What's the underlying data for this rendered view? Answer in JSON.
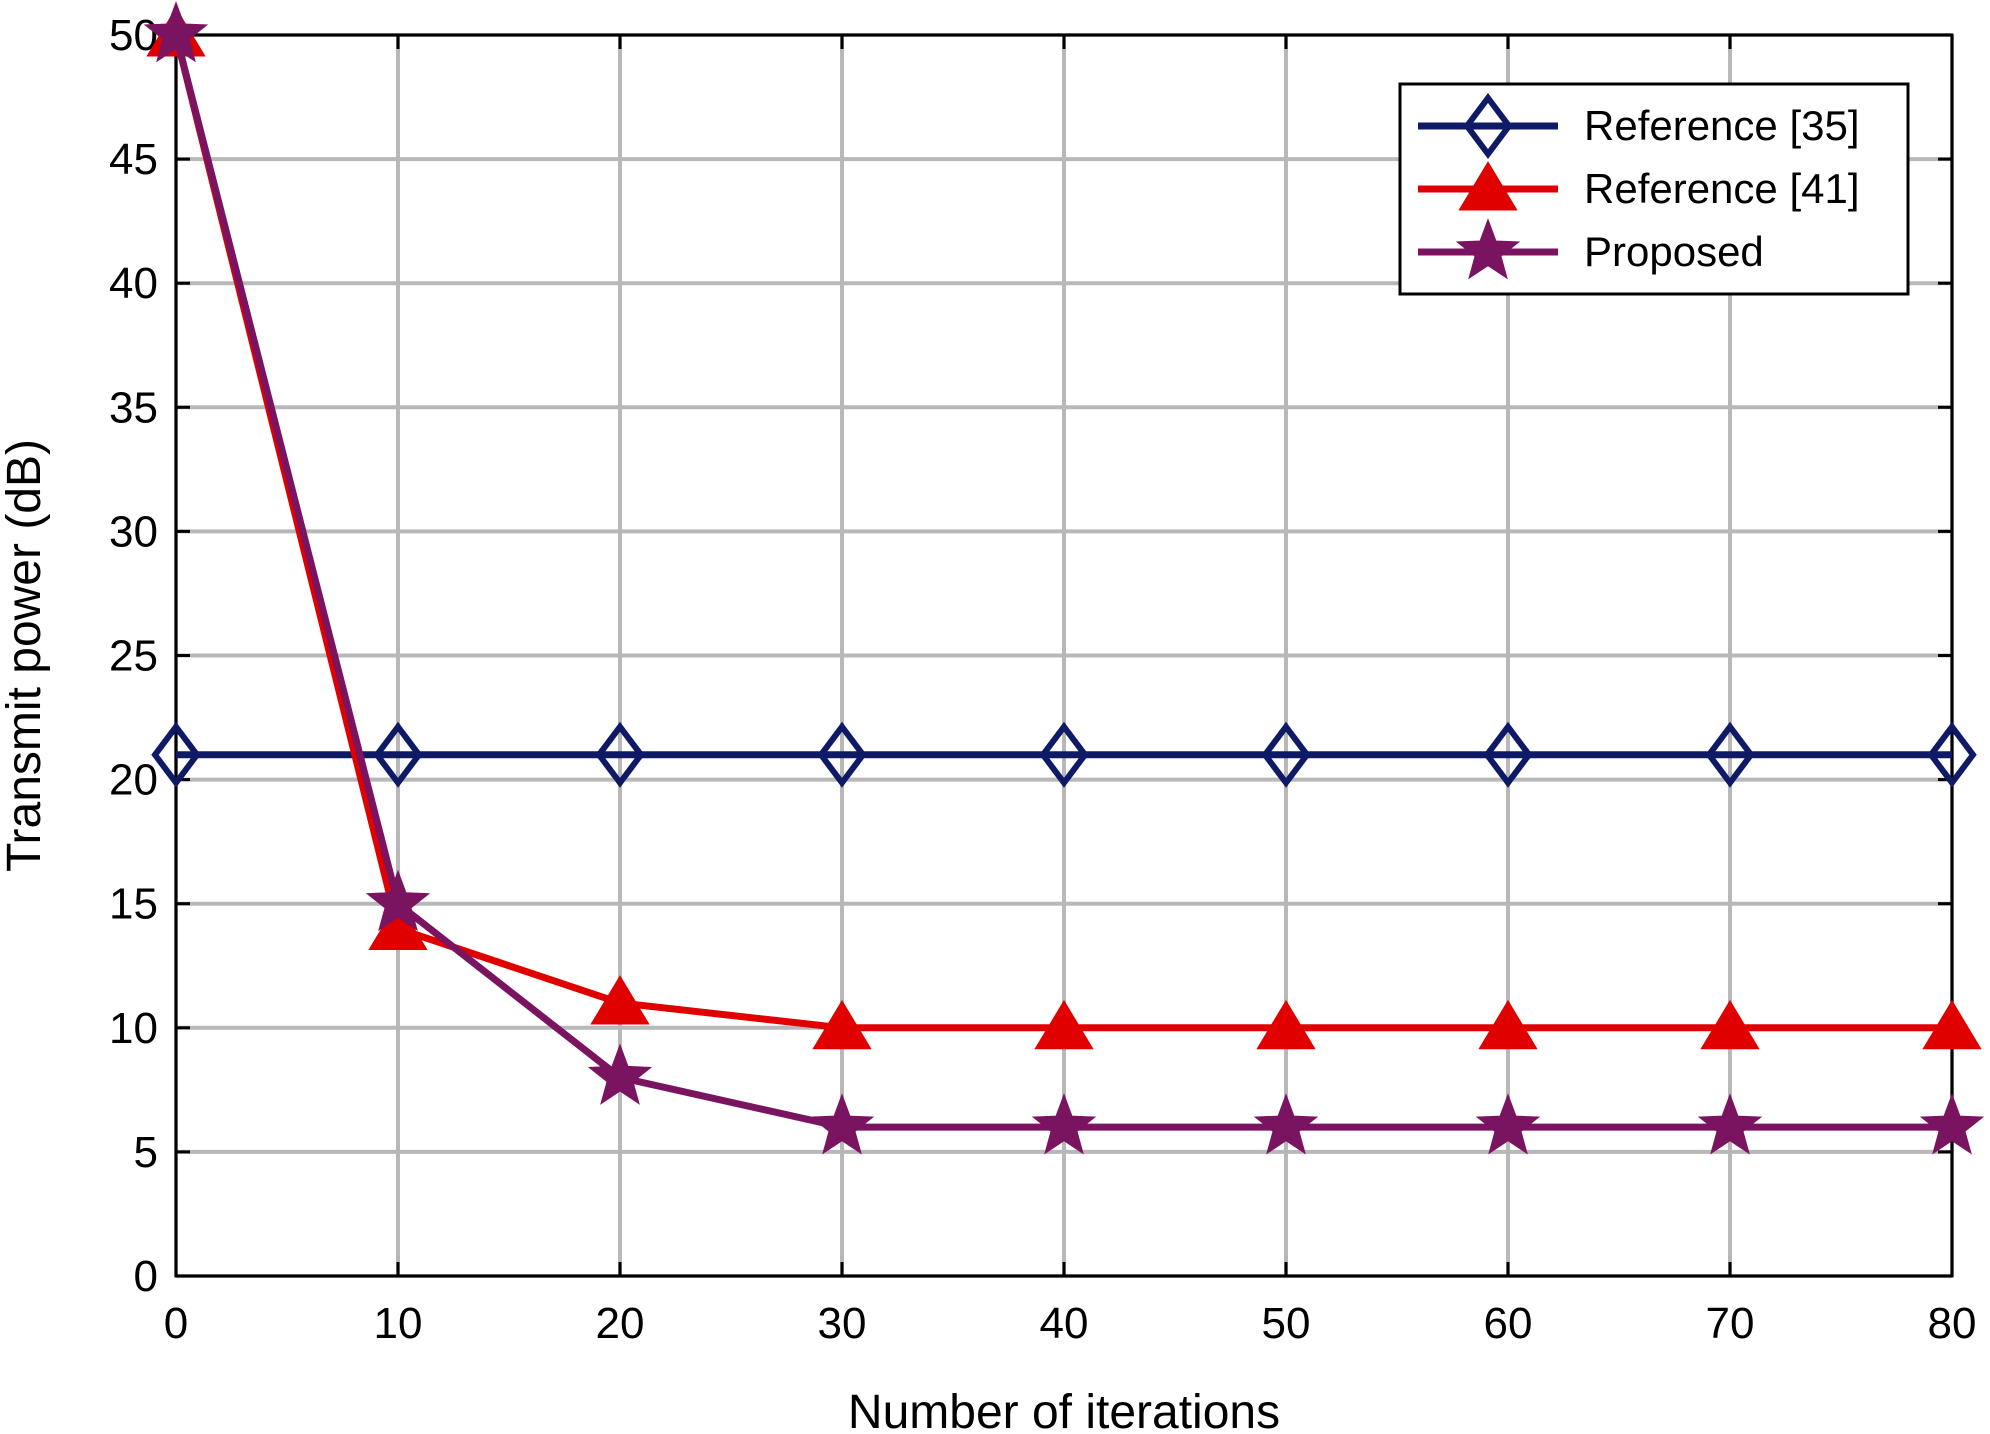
{
  "chart_data": {
    "type": "line",
    "title": "",
    "xlabel": "Number of iterations",
    "ylabel": "Transmit power (dB)",
    "xlim": [
      0,
      80
    ],
    "ylim": [
      0,
      50
    ],
    "xticks": [
      0,
      10,
      20,
      30,
      40,
      50,
      60,
      70,
      80
    ],
    "yticks": [
      0,
      5,
      10,
      15,
      20,
      25,
      30,
      35,
      40,
      45,
      50
    ],
    "grid": true,
    "legend_position": "top-right",
    "x": [
      0,
      10,
      20,
      30,
      40,
      50,
      60,
      70,
      80
    ],
    "series": [
      {
        "name": "Reference [35]",
        "marker": "diamond",
        "color": "#0f1a66",
        "values": [
          21,
          21,
          21,
          21,
          21,
          21,
          21,
          21,
          21
        ]
      },
      {
        "name": "Reference [41]",
        "marker": "triangle",
        "color": "#e00000",
        "values": [
          50,
          14,
          11,
          10,
          10,
          10,
          10,
          10,
          10
        ]
      },
      {
        "name": "Proposed",
        "marker": "star",
        "color": "#7a1460",
        "values": [
          50,
          15,
          8,
          6,
          6,
          6,
          6,
          6,
          6
        ]
      }
    ]
  }
}
